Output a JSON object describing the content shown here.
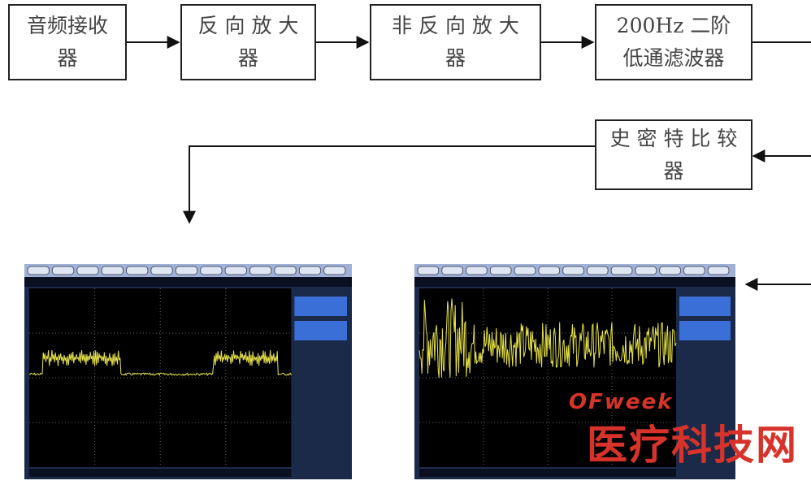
{
  "nodes": [
    {
      "lines": [
        "音频接收",
        "器"
      ]
    },
    {
      "lines": [
        "反 向 放 大",
        "器"
      ]
    },
    {
      "lines": [
        "非 反 向 放 大",
        "器"
      ]
    },
    {
      "lines": [
        "200Hz 二阶",
        "低通滤波器"
      ]
    },
    {
      "lines": [
        "史 密 特 比 较",
        "器"
      ]
    }
  ],
  "watermark": {
    "brand": "OFweek",
    "site": "医疗科技网"
  }
}
